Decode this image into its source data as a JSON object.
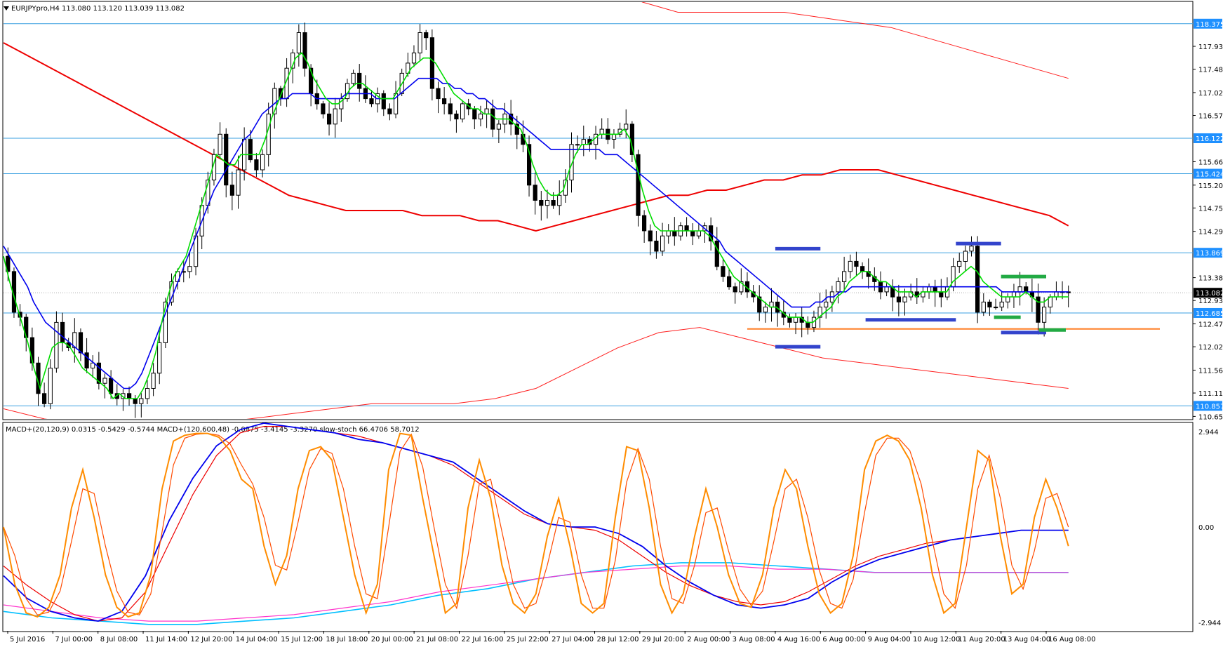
{
  "header": {
    "title": "EURJPYpro,H4  113.080 113.120 113.039 113.082",
    "indicator_title": "MACD+(20,120,9) 0.0315 -0.5429 -0.5744  MACD+(120,600,48) -0.0875 -3.4145 -3.3270  slow-stoch 66.4706 58.7012"
  },
  "colors": {
    "bull": "#ffffff",
    "bear": "#000000",
    "candle_outline": "#000000",
    "ema_fast": "#00dd00",
    "ema_slow": "#0000ee",
    "ma_long": "#ee0000",
    "envelope": "#ff2020",
    "hline": "#3a9fe0",
    "support": "#ff7f27",
    "blue_mark": "#3344cc",
    "green_mark": "#22aa44",
    "stoch_main": "#ff8c00",
    "stoch_signal": "#ff4a00",
    "macd_fast": "#0000ee",
    "macd_fast_signal": "#ee0000",
    "macd_slow": "#00bfff",
    "macd_slow_signal": "#ff33cc",
    "label_bg": "#1e90ff",
    "current_bg": "#000000"
  },
  "chart_data": {
    "type": "candlestick",
    "symbol": "EURJPYpro",
    "timeframe": "H4",
    "ohlc_last": {
      "open": 113.08,
      "high": 113.12,
      "low": 113.039,
      "close": 113.082
    },
    "price_axis_ticks": [
      117.93,
      117.48,
      117.02,
      116.57,
      115.66,
      115.2,
      114.75,
      114.29,
      113.38,
      112.93,
      112.47,
      112.02,
      111.56,
      111.11,
      110.65
    ],
    "price_range": [
      110.6,
      118.8
    ],
    "price_levels": [
      118.375,
      116.122,
      115.424,
      113.869,
      112.685,
      110.857
    ],
    "current_price": 113.082,
    "support_line": 112.37,
    "time_labels": [
      "5 Jul 2016",
      "7 Jul 00:00",
      "8 Jul 08:00",
      "11 Jul 14:00",
      "12 Jul 20:00",
      "14 Jul 04:00",
      "15 Jul 12:00",
      "18 Jul 18:00",
      "20 Jul 00:00",
      "21 Jul 08:00",
      "22 Jul 16:00",
      "25 Jul 22:00",
      "27 Jul 04:00",
      "28 Jul 12:00",
      "29 Jul 20:00",
      "2 Aug 00:00",
      "3 Aug 08:00",
      "4 Aug 16:00",
      "6 Aug 00:00",
      "9 Aug 04:00",
      "10 Aug 12:00",
      "11 Aug 20:00",
      "13 Aug 04:00",
      "16 Aug 08:00"
    ],
    "closes": [
      113.5,
      112.7,
      112.6,
      112.2,
      111.7,
      111.1,
      110.9,
      111.6,
      112.5,
      112.1,
      112.0,
      112.3,
      111.9,
      111.6,
      111.7,
      111.3,
      111.4,
      111.1,
      111.0,
      111.1,
      111.0,
      110.9,
      111.0,
      111.2,
      111.5,
      112.1,
      112.9,
      113.3,
      113.5,
      113.5,
      113.6,
      114.2,
      114.8,
      115.3,
      115.8,
      116.2,
      115.2,
      115.0,
      115.5,
      116.1,
      115.7,
      115.5,
      115.8,
      116.6,
      117.1,
      116.9,
      117.5,
      117.8,
      118.2,
      117.5,
      117.0,
      116.8,
      116.6,
      116.4,
      116.7,
      116.9,
      117.2,
      117.4,
      117.1,
      116.9,
      116.8,
      117.0,
      116.7,
      116.6,
      117.0,
      117.4,
      117.6,
      117.8,
      118.2,
      118.1,
      117.1,
      116.9,
      116.8,
      116.6,
      116.5,
      116.8,
      116.7,
      116.5,
      116.6,
      116.7,
      116.3,
      116.4,
      116.6,
      116.4,
      116.2,
      116.0,
      115.2,
      114.9,
      114.8,
      114.9,
      114.8,
      115.0,
      115.3,
      116.0,
      116.0,
      116.1,
      116.0,
      116.2,
      116.3,
      116.1,
      116.2,
      116.3,
      116.4,
      115.8,
      114.6,
      114.3,
      114.1,
      113.9,
      114.2,
      114.3,
      114.2,
      114.4,
      114.3,
      114.2,
      114.3,
      114.4,
      114.1,
      113.6,
      113.4,
      113.2,
      113.1,
      113.3,
      113.1,
      113.0,
      112.7,
      112.8,
      112.9,
      112.7,
      112.6,
      112.5,
      112.6,
      112.5,
      112.4,
      112.6,
      112.8,
      112.9,
      113.1,
      113.3,
      113.5,
      113.7,
      113.6,
      113.5,
      113.4,
      113.3,
      113.1,
      113.2,
      113.0,
      112.9,
      113.0,
      113.1,
      113.0,
      113.1,
      113.2,
      113.1,
      113.0,
      113.2,
      113.6,
      113.7,
      113.9,
      114.0,
      112.7,
      112.9,
      112.8,
      112.8,
      112.9,
      113.0,
      113.1,
      113.2,
      113.1,
      113.0,
      112.5,
      112.8,
      113.0,
      113.1,
      113.1,
      113.082
    ],
    "series": [
      {
        "name": "EMA fast",
        "values": [
          113.8,
          113.3,
          112.9,
          112.5,
          112.1,
          111.6,
          111.2,
          111.6,
          112.0,
          112.1,
          112.1,
          112.0,
          111.8,
          111.6,
          111.5,
          111.4,
          111.3,
          111.2,
          111.0,
          111.1,
          111.0,
          111.0,
          111.0,
          111.2,
          111.5,
          111.9,
          112.5,
          113.0,
          113.4,
          113.6,
          113.8,
          114.2,
          114.6,
          115.0,
          115.4,
          115.8,
          115.7,
          115.6,
          115.6,
          115.8,
          115.8,
          115.8,
          115.8,
          116.1,
          116.5,
          116.8,
          117.1,
          117.4,
          117.7,
          117.8,
          117.6,
          117.3,
          117.1,
          116.9,
          116.8,
          116.8,
          116.9,
          117.1,
          117.2,
          117.2,
          117.1,
          117.0,
          116.9,
          116.9,
          116.9,
          117.1,
          117.3,
          117.5,
          117.6,
          117.7,
          117.7,
          117.6,
          117.4,
          117.2,
          117.0,
          116.9,
          116.8,
          116.7,
          116.7,
          116.6,
          116.6,
          116.5,
          116.5,
          116.5,
          116.4,
          116.3,
          116.0,
          115.6,
          115.3,
          115.1,
          115.0,
          115.0,
          115.1,
          115.5,
          115.8,
          116.0,
          116.0,
          116.1,
          116.2,
          116.2,
          116.2,
          116.2,
          116.3,
          116.1,
          115.6,
          115.1,
          114.7,
          114.4,
          114.3,
          114.3,
          114.3,
          114.3,
          114.3,
          114.3,
          114.3,
          114.3,
          114.2,
          114.0,
          113.8,
          113.6,
          113.4,
          113.3,
          113.2,
          113.1,
          113.0,
          112.9,
          112.8,
          112.8,
          112.7,
          112.6,
          112.6,
          112.6,
          112.5,
          112.5,
          112.6,
          112.7,
          112.8,
          113.0,
          113.1,
          113.3,
          113.4,
          113.5,
          113.5,
          113.4,
          113.3,
          113.3,
          113.2,
          113.1,
          113.1,
          113.1,
          113.0,
          113.1,
          113.1,
          113.1,
          113.1,
          113.1,
          113.3,
          113.4,
          113.5,
          113.6,
          113.5,
          113.3,
          113.2,
          113.1,
          113.0,
          113.0,
          113.0,
          113.0,
          113.1,
          113.0,
          112.9,
          112.9,
          113.0,
          113.0,
          113.0,
          113.0
        ]
      },
      {
        "name": "EMA slow",
        "values": [
          114.0,
          113.8,
          113.6,
          113.4,
          113.2,
          112.9,
          112.7,
          112.5,
          112.4,
          112.3,
          112.2,
          112.1,
          112.0,
          111.9,
          111.8,
          111.7,
          111.6,
          111.5,
          111.4,
          111.3,
          111.2,
          111.2,
          111.3,
          111.5,
          111.8,
          112.1,
          112.4,
          112.7,
          113.0,
          113.3,
          113.6,
          113.9,
          114.2,
          114.5,
          114.8,
          115.1,
          115.3,
          115.5,
          115.7,
          115.9,
          116.1,
          116.2,
          116.4,
          116.6,
          116.7,
          116.8,
          116.9,
          116.9,
          117.0,
          117.0,
          117.0,
          117.0,
          116.9,
          116.9,
          116.9,
          116.9,
          116.9,
          117.0,
          117.0,
          117.0,
          117.0,
          117.0,
          116.9,
          116.9,
          116.9,
          116.9,
          117.0,
          117.1,
          117.2,
          117.3,
          117.3,
          117.3,
          117.3,
          117.2,
          117.2,
          117.1,
          117.1,
          117.0,
          117.0,
          116.9,
          116.9,
          116.8,
          116.7,
          116.7,
          116.6,
          116.5,
          116.4,
          116.3,
          116.2,
          116.1,
          116.0,
          115.9,
          115.9,
          115.9,
          115.9,
          115.9,
          115.9,
          115.9,
          115.9,
          115.9,
          115.8,
          115.8,
          115.8,
          115.7,
          115.6,
          115.5,
          115.4,
          115.3,
          115.2,
          115.1,
          115.0,
          114.9,
          114.8,
          114.7,
          114.6,
          114.5,
          114.4,
          114.3,
          114.2,
          114.1,
          113.9,
          113.8,
          113.7,
          113.6,
          113.5,
          113.4,
          113.3,
          113.2,
          113.1,
          113.0,
          112.9,
          112.8,
          112.8,
          112.8,
          112.8,
          112.9,
          112.9,
          113.0,
          113.0,
          113.1,
          113.1,
          113.2,
          113.2,
          113.2,
          113.2,
          113.2,
          113.2,
          113.2,
          113.2,
          113.2,
          113.2,
          113.2,
          113.2,
          113.2,
          113.2,
          113.2,
          113.2,
          113.2,
          113.2,
          113.2,
          113.2,
          113.2,
          113.2,
          113.2,
          113.2,
          113.2,
          113.1,
          113.1,
          113.1,
          113.1,
          113.1,
          113.1,
          113.1,
          113.1,
          113.1,
          113.1,
          113.1,
          113.1
        ]
      },
      {
        "name": "Long MA",
        "values": [
          118.0,
          117.8,
          117.6,
          117.4,
          117.2,
          117.0,
          116.8,
          116.6,
          116.4,
          116.2,
          116.0,
          115.8,
          115.6,
          115.4,
          115.2,
          115.0,
          114.9,
          114.8,
          114.7,
          114.7,
          114.7,
          114.7,
          114.6,
          114.6,
          114.6,
          114.5,
          114.5,
          114.4,
          114.3,
          114.4,
          114.5,
          114.6,
          114.7,
          114.8,
          114.9,
          115.0,
          115.0,
          115.1,
          115.1,
          115.2,
          115.3,
          115.3,
          115.4,
          115.4,
          115.5,
          115.5,
          115.5,
          115.4,
          115.3,
          115.2,
          115.1,
          115.0,
          114.9,
          114.8,
          114.7,
          114.6,
          114.4
        ]
      },
      {
        "name": "Upper envelope",
        "values": [
          118.9,
          119.1,
          119.3,
          119.5,
          119.7,
          119.9,
          120.1,
          120.3,
          120.5,
          120.6,
          120.7,
          120.7,
          120.5,
          120.3,
          120.0,
          119.7,
          119.4,
          119.1,
          118.8,
          118.6,
          118.6,
          118.6,
          118.6,
          118.5,
          118.4,
          118.3,
          118.1,
          117.9,
          117.7,
          117.5,
          117.3
        ]
      },
      {
        "name": "Lower envelope",
        "values": [
          110.8,
          110.6,
          110.5,
          110.4,
          110.4,
          110.5,
          110.6,
          110.7,
          110.8,
          110.9,
          110.9,
          110.9,
          111.0,
          111.2,
          111.6,
          112.0,
          112.3,
          112.4,
          112.2,
          112.0,
          111.8,
          111.7,
          111.6,
          111.5,
          111.4,
          111.3,
          111.2
        ]
      }
    ],
    "indicator_ticks": [
      2.944,
      0.0,
      -2.944
    ],
    "indicator_range": [
      -3.2,
      3.2
    ],
    "indicator_series": [
      {
        "name": "slow-stoch",
        "values": [
          50,
          20,
          5,
          3,
          8,
          25,
          60,
          80,
          55,
          25,
          8,
          3,
          5,
          25,
          70,
          95,
          98,
          99,
          99,
          97,
          90,
          75,
          70,
          40,
          20,
          35,
          70,
          90,
          92,
          85,
          55,
          25,
          5,
          20,
          80,
          99,
          98,
          65,
          35,
          5,
          10,
          60,
          85,
          65,
          30,
          10,
          5,
          15,
          45,
          65,
          40,
          10,
          5,
          10,
          55,
          92,
          90,
          60,
          20,
          5,
          15,
          45,
          70,
          50,
          25,
          10,
          8,
          25,
          60,
          80,
          70,
          40,
          15,
          5,
          10,
          35,
          80,
          95,
          98,
          95,
          85,
          60,
          25,
          5,
          10,
          50,
          90,
          85,
          45,
          15,
          20,
          55,
          75,
          60,
          40
        ]
      },
      {
        "name": "MACD fast",
        "values": [
          -1.5,
          -2.2,
          -2.6,
          -2.8,
          -2.9,
          -2.6,
          -1.5,
          0.2,
          1.5,
          2.5,
          3.0,
          3.2,
          3.1,
          3.0,
          2.9,
          2.7,
          2.6,
          2.4,
          2.2,
          2.0,
          1.5,
          1.0,
          0.5,
          0.1,
          0.0,
          0.0,
          -0.2,
          -0.6,
          -1.2,
          -1.7,
          -2.1,
          -2.4,
          -2.5,
          -2.4,
          -2.2,
          -1.7,
          -1.3,
          -1.0,
          -0.8,
          -0.6,
          -0.4,
          -0.3,
          -0.2,
          -0.1,
          -0.1,
          -0.1
        ]
      },
      {
        "name": "MACD fast signal",
        "values": [
          -1.2,
          -1.8,
          -2.3,
          -2.7,
          -2.9,
          -2.8,
          -2.0,
          -0.5,
          1.0,
          2.2,
          2.9,
          3.1,
          3.1,
          3.0,
          2.9,
          2.8,
          2.6,
          2.4,
          2.2,
          1.9,
          1.4,
          0.9,
          0.4,
          0.1,
          0.0,
          -0.1,
          -0.4,
          -0.9,
          -1.4,
          -1.8,
          -2.1,
          -2.3,
          -2.4,
          -2.3,
          -2.0,
          -1.6,
          -1.2,
          -0.9,
          -0.7,
          -0.5,
          -0.4,
          -0.3,
          -0.2,
          -0.1,
          -0.1,
          -0.1
        ]
      },
      {
        "name": "MACD slow",
        "values": [
          -2.6,
          -2.8,
          -2.9,
          -3.0,
          -3.0,
          -2.9,
          -2.8,
          -2.6,
          -2.4,
          -2.1,
          -1.9,
          -1.6,
          -1.4,
          -1.2,
          -1.1,
          -1.1,
          -1.2,
          -1.3,
          -1.4,
          -1.4,
          -1.4,
          -1.4,
          -1.4
        ]
      },
      {
        "name": "MACD slow signal",
        "values": [
          -2.4,
          -2.6,
          -2.8,
          -2.9,
          -2.9,
          -2.8,
          -2.7,
          -2.5,
          -2.3,
          -2.0,
          -1.8,
          -1.6,
          -1.4,
          -1.3,
          -1.2,
          -1.2,
          -1.3,
          -1.3,
          -1.4,
          -1.4,
          -1.4,
          -1.4,
          -1.4
        ]
      }
    ],
    "horizontal_marks": [
      {
        "color": "blue",
        "price": 113.95,
        "from_label": "4 Aug 16:00",
        "to_label": "6 Aug 00:00"
      },
      {
        "color": "blue",
        "price": 114.05,
        "from_label": "11 Aug 20:00",
        "to_label": "13 Aug 04:00"
      },
      {
        "color": "blue",
        "price": 112.55,
        "from_label": "9 Aug 04:00",
        "to_label": "11 Aug 20:00"
      },
      {
        "color": "blue",
        "price": 112.02,
        "from_label": "4 Aug 16:00",
        "to_label": "6 Aug 00:00"
      },
      {
        "color": "blue",
        "price": 112.3,
        "from_label": "13 Aug 04:00",
        "to_label": "16 Aug 08:00"
      },
      {
        "color": "green",
        "price": 113.4,
        "from_label": "13 Aug 04:00",
        "to_label": "16 Aug 08:00"
      },
      {
        "color": "green",
        "price": 112.6,
        "from_label": "13 Aug 04:00",
        "to_label": "13 Aug 04:00"
      },
      {
        "color": "green",
        "price": 112.35,
        "from_label": "16 Aug 08:00",
        "to_label": "16 Aug 08:00"
      }
    ]
  }
}
